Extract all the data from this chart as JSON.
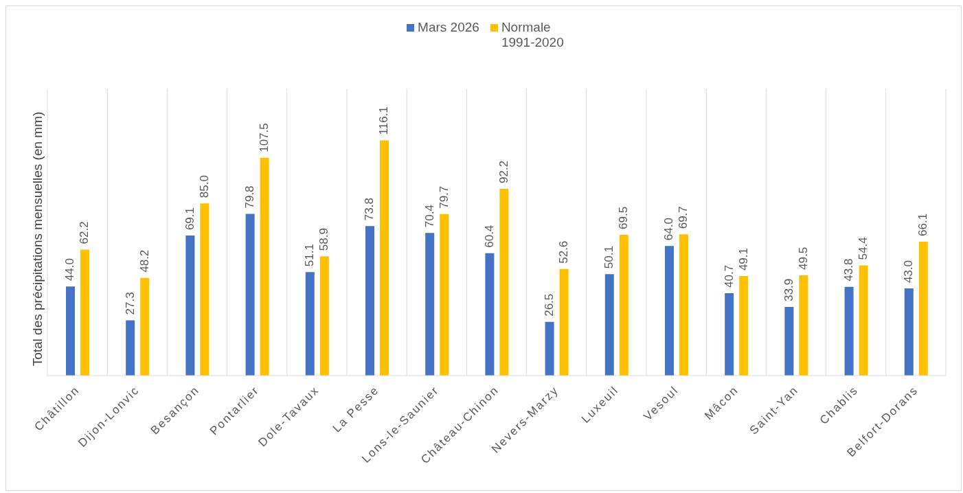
{
  "chart_data": {
    "type": "bar",
    "ylabel": "Total des précipitations mensuelles (en mm)",
    "categories": [
      "Châtillon",
      "Dijon-Lonvic",
      "Besançon",
      "Pontarlier",
      "Dole-Tavaux",
      "La Pesse",
      "Lons-le-Saunier",
      "Château-Chinon",
      "Nevers-Marzy",
      "Luxeuil",
      "Vesoul",
      "Mâcon",
      "Saint-Yan",
      "Chablis",
      "Belfort-Dorans"
    ],
    "series": [
      {
        "name": "Mars 2026",
        "color": "#4472c4",
        "values": [
          44.0,
          27.3,
          69.1,
          79.8,
          51.1,
          73.8,
          70.4,
          60.4,
          26.5,
          50.1,
          64.0,
          40.7,
          33.9,
          43.8,
          43.0
        ],
        "value_labels": [
          "44.0",
          "27.3",
          "69.1",
          "79.8",
          "51.1",
          "73.8",
          "70.4",
          "60.4",
          "26.5",
          "50.1",
          "64.0",
          "40.7",
          "33.9",
          "43.8",
          "43.0"
        ]
      },
      {
        "name": "Normale 1991-2020",
        "color": "#ffc000",
        "values": [
          62.2,
          48.2,
          85.0,
          107.5,
          58.9,
          116.1,
          79.7,
          92.2,
          52.6,
          69.5,
          69.7,
          49.1,
          49.5,
          54.4,
          66.1
        ],
        "value_labels": [
          "62.2",
          "48.2",
          "85.0",
          "107.5",
          "58.9",
          "116.1",
          "79.7",
          "92.2",
          "52.6",
          "69.5",
          "69.7",
          "49.1",
          "49.5",
          "54.4",
          "66.1"
        ]
      }
    ],
    "grid": "x",
    "legend": "top"
  }
}
